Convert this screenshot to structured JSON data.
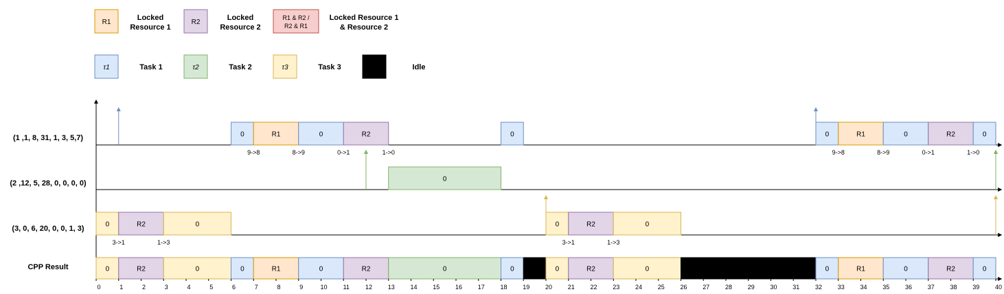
{
  "colors": {
    "task1_fill": "#dae8fc",
    "task1_stroke": "#6c8ebf",
    "task2_fill": "#d5e8d4",
    "task2_stroke": "#82b366",
    "task3_fill": "#fff2cc",
    "task3_stroke": "#d6b656",
    "r1_fill": "#ffe6cc",
    "r1_stroke": "#d79b00",
    "r2_fill": "#e1d5e7",
    "r2_stroke": "#9673a6",
    "both_fill": "#f8cecc",
    "both_stroke": "#b85450",
    "idle": "#000000"
  },
  "legend": {
    "r1_box": "R1",
    "r1_text": [
      "Locked",
      "Resource 1"
    ],
    "r2_box": "R2",
    "r2_text": [
      "Locked",
      "Resource 2"
    ],
    "both_box": [
      "R1 & R2 /",
      "R2 & R1"
    ],
    "both_text": [
      "Locked Resource 1",
      "& Resource 2"
    ],
    "tau1": "τ1",
    "task1": "Task 1",
    "tau2": "τ2",
    "task2": "Task 2",
    "tau3": "τ3",
    "task3": "Task 3",
    "idle": "Idle"
  },
  "rows": [
    {
      "label": "(1 ,1, 8, 31, 1, 3, 5,7)",
      "task": 1,
      "arrivals": [
        1,
        32
      ],
      "deadlines": [
        12,
        40
      ],
      "segments": [
        {
          "start": 6,
          "end": 7,
          "label": "0",
          "kind": "task"
        },
        {
          "start": 7,
          "end": 9,
          "label": "R1",
          "kind": "r1"
        },
        {
          "start": 9,
          "end": 11,
          "label": "0",
          "kind": "task"
        },
        {
          "start": 11,
          "end": 13,
          "label": "R2",
          "kind": "r2"
        },
        {
          "start": 18,
          "end": 19,
          "label": "0",
          "kind": "task"
        },
        {
          "start": 32,
          "end": 33,
          "label": "0",
          "kind": "task"
        },
        {
          "start": 33,
          "end": 35,
          "label": "R1",
          "kind": "r1"
        },
        {
          "start": 35,
          "end": 37,
          "label": "0",
          "kind": "task"
        },
        {
          "start": 37,
          "end": 39,
          "label": "R2",
          "kind": "r2"
        },
        {
          "start": 39,
          "end": 40,
          "label": "0",
          "kind": "task"
        }
      ],
      "priority_changes": [
        {
          "x": 7,
          "label": "9->8"
        },
        {
          "x": 9,
          "label": "8->9"
        },
        {
          "x": 11,
          "label": "0->1"
        },
        {
          "x": 13,
          "label": "1->0"
        },
        {
          "x": 33,
          "label": "9->8"
        },
        {
          "x": 35,
          "label": "8->9"
        },
        {
          "x": 37,
          "label": "0->1"
        },
        {
          "x": 39,
          "label": "1->0"
        }
      ]
    },
    {
      "label": "(2 ,12, 5, 28, 0, 0, 0, 0)",
      "task": 2,
      "arrivals": [
        12,
        40
      ],
      "deadlines": [],
      "segments": [
        {
          "start": 13,
          "end": 18,
          "label": "0",
          "kind": "task"
        }
      ],
      "priority_changes": []
    },
    {
      "label": "(3, 0, 6, 20, 0, 0, 1, 3)",
      "task": 3,
      "arrivals": [
        20,
        40
      ],
      "deadlines": [],
      "segments": [
        {
          "start": 0,
          "end": 1,
          "label": "0",
          "kind": "task"
        },
        {
          "start": 1,
          "end": 3,
          "label": "R2",
          "kind": "r2"
        },
        {
          "start": 3,
          "end": 6,
          "label": "0",
          "kind": "task"
        },
        {
          "start": 20,
          "end": 21,
          "label": "0",
          "kind": "task"
        },
        {
          "start": 21,
          "end": 23,
          "label": "R2",
          "kind": "r2"
        },
        {
          "start": 23,
          "end": 26,
          "label": "0",
          "kind": "task"
        }
      ],
      "priority_changes": [
        {
          "x": 1,
          "label": "3->1"
        },
        {
          "x": 3,
          "label": "1->3"
        },
        {
          "x": 21,
          "label": "3->1"
        },
        {
          "x": 23,
          "label": "1->3"
        }
      ]
    }
  ],
  "result": {
    "label": "CPP Result",
    "segments": [
      {
        "start": 0,
        "end": 1,
        "label": "0",
        "kind": "task3"
      },
      {
        "start": 1,
        "end": 3,
        "label": "R2",
        "kind": "r2"
      },
      {
        "start": 3,
        "end": 6,
        "label": "0",
        "kind": "task3"
      },
      {
        "start": 6,
        "end": 7,
        "label": "0",
        "kind": "task1"
      },
      {
        "start": 7,
        "end": 9,
        "label": "R1",
        "kind": "r1"
      },
      {
        "start": 9,
        "end": 11,
        "label": "0",
        "kind": "task1"
      },
      {
        "start": 11,
        "end": 13,
        "label": "R2",
        "kind": "r2"
      },
      {
        "start": 13,
        "end": 18,
        "label": "0",
        "kind": "task2"
      },
      {
        "start": 18,
        "end": 19,
        "label": "0",
        "kind": "task1"
      },
      {
        "start": 19,
        "end": 20,
        "label": "",
        "kind": "idle"
      },
      {
        "start": 20,
        "end": 21,
        "label": "0",
        "kind": "task3"
      },
      {
        "start": 21,
        "end": 23,
        "label": "R2",
        "kind": "r2"
      },
      {
        "start": 23,
        "end": 26,
        "label": "0",
        "kind": "task3"
      },
      {
        "start": 26,
        "end": 32,
        "label": "",
        "kind": "idle"
      },
      {
        "start": 32,
        "end": 33,
        "label": "0",
        "kind": "task1"
      },
      {
        "start": 33,
        "end": 35,
        "label": "R1",
        "kind": "r1"
      },
      {
        "start": 35,
        "end": 37,
        "label": "0",
        "kind": "task1"
      },
      {
        "start": 37,
        "end": 39,
        "label": "R2",
        "kind": "r2"
      },
      {
        "start": 39,
        "end": 40,
        "label": "0",
        "kind": "task1"
      }
    ]
  },
  "time_axis": {
    "min": 0,
    "max": 40,
    "ticks": [
      "0",
      "1",
      "2",
      "3",
      "4",
      "5",
      "6",
      "7",
      "8",
      "9",
      "10",
      "11",
      "12",
      "13",
      "14",
      "15",
      "16",
      "17",
      "18",
      "19",
      "20",
      "21",
      "22",
      "23",
      "24",
      "25",
      "26",
      "27",
      "28",
      "29",
      "30",
      "31",
      "32",
      "33",
      "34",
      "35",
      "36",
      "37",
      "38",
      "39",
      "40"
    ]
  }
}
